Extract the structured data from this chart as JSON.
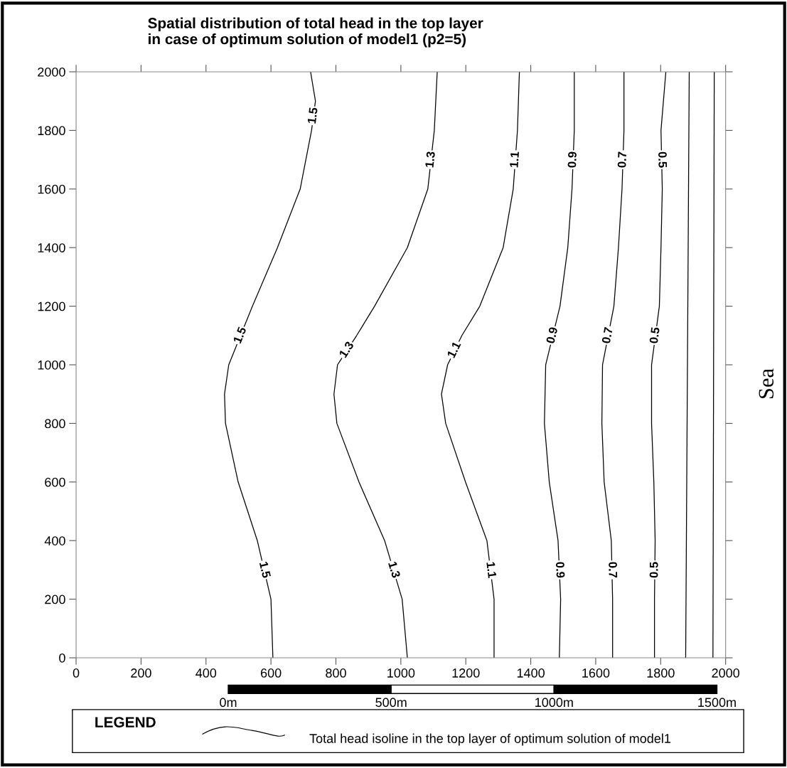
{
  "chart_data": {
    "type": "line",
    "title": "Spatial distribution of total head in the top layer\nin case of optimum solution of model1 (p2=5)",
    "xlim": [
      0,
      2000
    ],
    "ylim": [
      0,
      2000
    ],
    "xticks": [
      0,
      200,
      400,
      600,
      800,
      1000,
      1200,
      1400,
      1600,
      1800,
      2000
    ],
    "yticks": [
      0,
      200,
      400,
      600,
      800,
      1000,
      1200,
      1400,
      1600,
      1800,
      2000
    ],
    "grid": false,
    "marker": "none",
    "line_style": "solid",
    "series": [
      {
        "name": "1.5",
        "color": "#000000",
        "x": [
          722,
          737,
          725,
          690,
          620,
          543,
          470,
          457,
          460,
          499,
          558,
          600,
          606
        ],
        "values": [
          2000,
          1900,
          1800,
          1600,
          1400,
          1200,
          1000,
          900,
          800,
          600,
          400,
          200,
          0
        ]
      },
      {
        "name": "1.3",
        "color": "#000000",
        "x": [
          1112,
          1103,
          1083,
          1020,
          919,
          864,
          805,
          794,
          803,
          871,
          950,
          1004,
          1020
        ],
        "values": [
          2000,
          1800,
          1600,
          1400,
          1200,
          1100,
          1000,
          900,
          800,
          600,
          400,
          200,
          0
        ]
      },
      {
        "name": "1.1",
        "color": "#000000",
        "x": [
          1365,
          1359,
          1346,
          1315,
          1243,
          1188,
          1144,
          1125,
          1138,
          1199,
          1265,
          1287,
          1287
        ],
        "values": [
          2000,
          1800,
          1600,
          1400,
          1200,
          1100,
          1000,
          900,
          800,
          600,
          400,
          200,
          0
        ]
      },
      {
        "name": "0.9",
        "color": "#000000",
        "x": [
          1534,
          1534,
          1527,
          1514,
          1490,
          1446,
          1442,
          1457,
          1484,
          1492,
          1488
        ],
        "values": [
          2000,
          1800,
          1600,
          1400,
          1200,
          1000,
          800,
          600,
          400,
          200,
          0
        ]
      },
      {
        "name": "0.7",
        "color": "#000000",
        "x": [
          1687,
          1687,
          1681,
          1670,
          1656,
          1621,
          1619,
          1626,
          1648,
          1652,
          1652
        ],
        "values": [
          2000,
          1800,
          1600,
          1400,
          1200,
          1000,
          800,
          600,
          400,
          200,
          0
        ]
      },
      {
        "name": "0.5",
        "color": "#000000",
        "x": [
          1816,
          1801,
          1805,
          1801,
          1796,
          1772,
          1772,
          1779,
          1783,
          1781,
          1781
        ],
        "values": [
          2000,
          1800,
          1600,
          1400,
          1200,
          1000,
          800,
          600,
          400,
          200,
          0
        ]
      },
      {
        "color": "#000000",
        "x": [
          1888,
          1877
        ],
        "values": [
          2000,
          0
        ]
      },
      {
        "color": "#000000",
        "x": [
          1965,
          1961
        ],
        "values": [
          2000,
          0
        ]
      }
    ],
    "annotations": [
      "Sea",
      "0m",
      "500m",
      "1000m",
      "1500m",
      "LEGEND",
      "Total head isoline in the top layer of optimum solution of model1"
    ]
  }
}
